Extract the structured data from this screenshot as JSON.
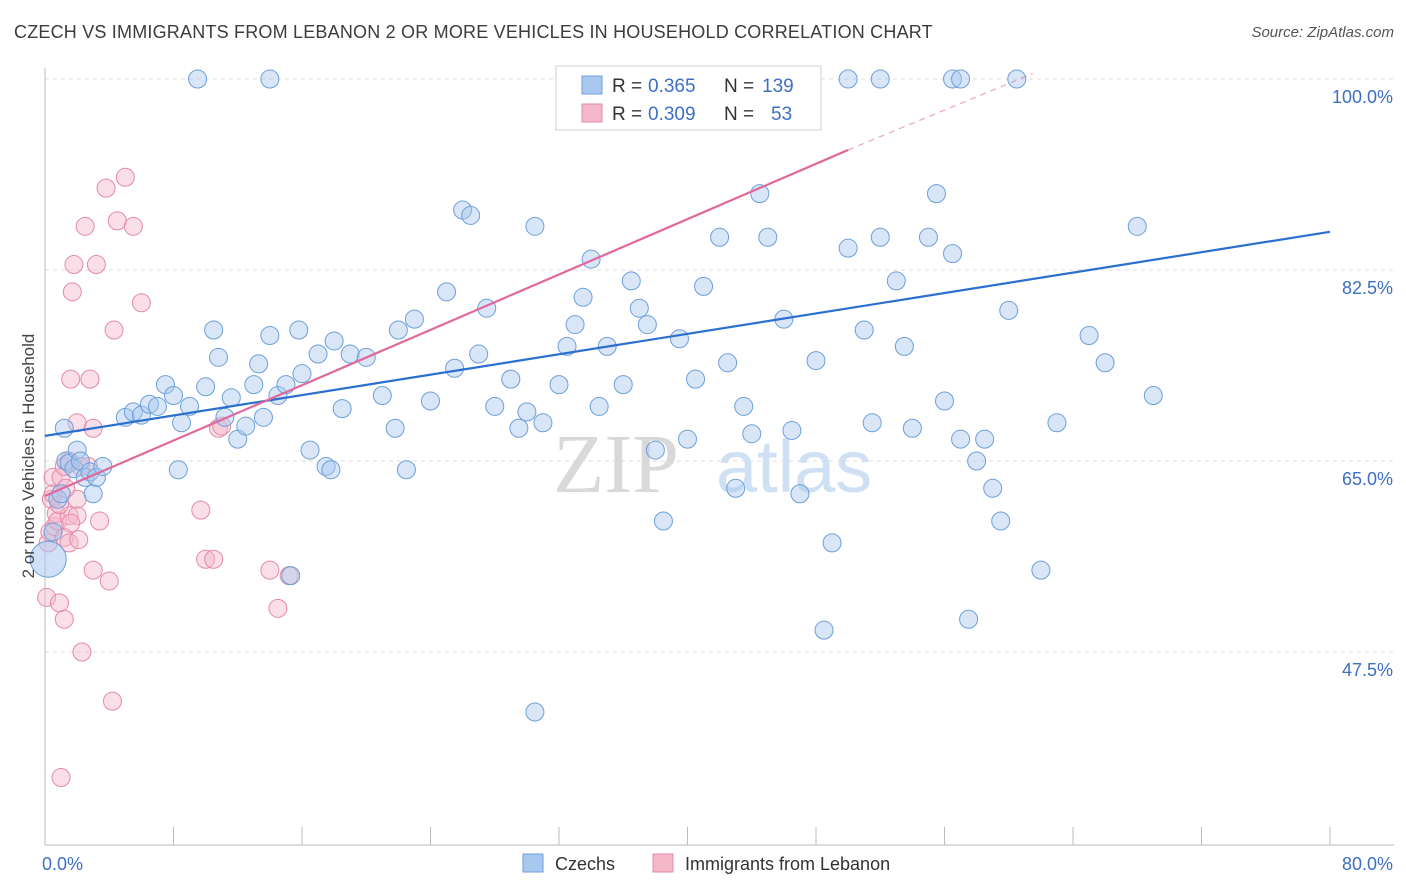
{
  "title": "CZECH VS IMMIGRANTS FROM LEBANON 2 OR MORE VEHICLES IN HOUSEHOLD CORRELATION CHART",
  "source": "Source: ZipAtlas.com",
  "watermark": {
    "zip": "ZIP",
    "atlas": "atlas"
  },
  "colors": {
    "blue_fill": "#a9c8f0",
    "blue_stroke": "#6e9fd8",
    "blue_line": "#2b6fcf",
    "pink_fill": "#f5b8cb",
    "pink_stroke": "#e48aa8",
    "pink_line": "#e0689a",
    "tick_text": "#3d6fc4",
    "grid": "#dddddd"
  },
  "legend": {
    "rows": [
      {
        "r_label": "R =",
        "r_value": "0.365",
        "n_label": "N =",
        "n_value": "139"
      },
      {
        "r_label": "R =",
        "r_value": "0.309",
        "n_label": "N =",
        "n_value": "53"
      }
    ]
  },
  "chart_data": {
    "type": "scatter",
    "xlabel": "",
    "ylabel": "2 or more Vehicles in Household",
    "xlim": [
      0,
      80
    ],
    "ylim": [
      30,
      103
    ],
    "x_tick_labels": [
      {
        "v": 0,
        "label": "0.0%"
      },
      {
        "v": 80,
        "label": "80.0%"
      }
    ],
    "x_minor_ticks": [
      0,
      8,
      16,
      24,
      32,
      40,
      48,
      56,
      64,
      72,
      80
    ],
    "y_ticks": [
      {
        "v": 47.5,
        "label": "47.5%"
      },
      {
        "v": 65.0,
        "label": "65.0%"
      },
      {
        "v": 82.5,
        "label": "82.5%"
      },
      {
        "v": 100.0,
        "label": "100.0%"
      }
    ],
    "series": [
      {
        "name": "Czechs",
        "color": "blue",
        "trend": {
          "x0": 0,
          "y0": 67.3,
          "x1": 80,
          "y1": 86.0
        },
        "points": [
          [
            0.2,
            56.0
          ],
          [
            0.5,
            58.5
          ],
          [
            0.8,
            61.5
          ],
          [
            1.0,
            62.0
          ],
          [
            1.2,
            68.0
          ],
          [
            1.3,
            65.0
          ],
          [
            1.5,
            64.8
          ],
          [
            1.8,
            64.3
          ],
          [
            2.0,
            66.0
          ],
          [
            2.2,
            65.0
          ],
          [
            2.5,
            63.5
          ],
          [
            2.8,
            64.0
          ],
          [
            3.0,
            62.0
          ],
          [
            3.2,
            63.5
          ],
          [
            3.6,
            64.5
          ],
          [
            5.0,
            69.0
          ],
          [
            5.5,
            69.5
          ],
          [
            6.0,
            69.2
          ],
          [
            6.5,
            70.2
          ],
          [
            7.0,
            70.0
          ],
          [
            7.5,
            72.0
          ],
          [
            8.0,
            71.0
          ],
          [
            8.3,
            64.2
          ],
          [
            8.5,
            68.5
          ],
          [
            9.0,
            70.0
          ],
          [
            10.0,
            71.8
          ],
          [
            10.5,
            77.0
          ],
          [
            10.8,
            74.5
          ],
          [
            11.2,
            69.0
          ],
          [
            11.6,
            70.8
          ],
          [
            12.0,
            67.0
          ],
          [
            12.5,
            68.2
          ],
          [
            13.0,
            72.0
          ],
          [
            13.3,
            73.9
          ],
          [
            13.6,
            69.0
          ],
          [
            14.0,
            76.5
          ],
          [
            14.5,
            71.0
          ],
          [
            15.0,
            72.0
          ],
          [
            15.3,
            54.5
          ],
          [
            15.8,
            77.0
          ],
          [
            16.0,
            73.0
          ],
          [
            16.5,
            66.0
          ],
          [
            17.0,
            74.8
          ],
          [
            17.5,
            64.5
          ],
          [
            17.8,
            64.2
          ],
          [
            18.0,
            76.0
          ],
          [
            18.5,
            69.8
          ],
          [
            19.0,
            74.8
          ],
          [
            20.0,
            74.5
          ],
          [
            21.0,
            71.0
          ],
          [
            21.8,
            68.0
          ],
          [
            22.0,
            77.0
          ],
          [
            22.5,
            64.2
          ],
          [
            23.0,
            78.0
          ],
          [
            24.0,
            70.5
          ],
          [
            25.0,
            80.5
          ],
          [
            25.5,
            73.5
          ],
          [
            26.0,
            88.0
          ],
          [
            26.5,
            87.5
          ],
          [
            27.0,
            74.8
          ],
          [
            27.5,
            79.0
          ],
          [
            28.0,
            70.0
          ],
          [
            29.0,
            72.5
          ],
          [
            29.5,
            68.0
          ],
          [
            30.0,
            69.5
          ],
          [
            30.5,
            86.5
          ],
          [
            31.0,
            68.5
          ],
          [
            32.0,
            72.0
          ],
          [
            32.5,
            75.5
          ],
          [
            33.0,
            77.5
          ],
          [
            33.5,
            80.0
          ],
          [
            34.0,
            83.5
          ],
          [
            34.5,
            70.0
          ],
          [
            35.0,
            75.5
          ],
          [
            36.0,
            72.0
          ],
          [
            36.5,
            81.5
          ],
          [
            37.0,
            79.0
          ],
          [
            37.5,
            77.5
          ],
          [
            38.0,
            66.0
          ],
          [
            38.5,
            59.5
          ],
          [
            39.5,
            76.2
          ],
          [
            40.0,
            67.0
          ],
          [
            40.5,
            72.5
          ],
          [
            41.0,
            81.0
          ],
          [
            42.0,
            85.5
          ],
          [
            42.5,
            74.0
          ],
          [
            43.0,
            62.5
          ],
          [
            43.5,
            70.0
          ],
          [
            44.0,
            67.5
          ],
          [
            44.5,
            89.5
          ],
          [
            45.0,
            85.5
          ],
          [
            46.0,
            78.0
          ],
          [
            46.5,
            67.8
          ],
          [
            47.0,
            62.0
          ],
          [
            48.0,
            74.2
          ],
          [
            48.5,
            49.5
          ],
          [
            49.0,
            57.5
          ],
          [
            50.0,
            84.5
          ],
          [
            51.0,
            77.0
          ],
          [
            51.5,
            68.5
          ],
          [
            52.0,
            85.5
          ],
          [
            53.0,
            81.5
          ],
          [
            53.5,
            75.5
          ],
          [
            54.0,
            68.0
          ],
          [
            55.0,
            85.5
          ],
          [
            55.5,
            89.5
          ],
          [
            56.0,
            70.5
          ],
          [
            56.5,
            84.0
          ],
          [
            57.0,
            67.0
          ],
          [
            57.5,
            50.5
          ],
          [
            58.0,
            65.0
          ],
          [
            58.5,
            67.0
          ],
          [
            59.0,
            62.5
          ],
          [
            59.5,
            59.5
          ],
          [
            60.0,
            78.8
          ],
          [
            62.0,
            55.0
          ],
          [
            63.0,
            68.5
          ],
          [
            65.0,
            76.5
          ],
          [
            66.0,
            74.0
          ],
          [
            68.0,
            86.5
          ],
          [
            69.0,
            71.0
          ],
          [
            30.5,
            42.0
          ],
          [
            9.5,
            100.0
          ],
          [
            14.0,
            100.0
          ],
          [
            34.5,
            100.0
          ],
          [
            35.0,
            100.0
          ],
          [
            37.0,
            100.0
          ],
          [
            50.0,
            100.0
          ],
          [
            52.0,
            100.0
          ],
          [
            56.5,
            100.0
          ],
          [
            57.0,
            100.0
          ],
          [
            60.5,
            100.0
          ]
        ]
      },
      {
        "name": "Immigrants from Lebanon",
        "color": "pink",
        "trend": {
          "x0": 0,
          "y0": 61.8,
          "x1": 50,
          "y1": 93.5,
          "dash_x1": 61.5,
          "dash_y1": 100.5
        },
        "points": [
          [
            0.1,
            52.5
          ],
          [
            0.2,
            57.5
          ],
          [
            0.3,
            58.5
          ],
          [
            0.4,
            61.5
          ],
          [
            0.5,
            62.0
          ],
          [
            0.5,
            63.5
          ],
          [
            0.6,
            59.0
          ],
          [
            0.7,
            60.2
          ],
          [
            0.8,
            59.5
          ],
          [
            0.9,
            52.0
          ],
          [
            1.0,
            63.5
          ],
          [
            1.0,
            36.0
          ],
          [
            1.2,
            64.5
          ],
          [
            1.2,
            58.0
          ],
          [
            1.2,
            50.5
          ],
          [
            1.5,
            60.0
          ],
          [
            1.5,
            57.5
          ],
          [
            1.5,
            65.0
          ],
          [
            1.6,
            72.5
          ],
          [
            1.7,
            80.5
          ],
          [
            1.8,
            83.0
          ],
          [
            2.0,
            68.5
          ],
          [
            2.0,
            60.0
          ],
          [
            2.0,
            61.5
          ],
          [
            2.2,
            64.5
          ],
          [
            2.3,
            47.5
          ],
          [
            2.5,
            86.5
          ],
          [
            2.7,
            64.5
          ],
          [
            2.8,
            72.5
          ],
          [
            3.0,
            68.0
          ],
          [
            3.0,
            55.0
          ],
          [
            3.2,
            83.0
          ],
          [
            3.4,
            59.5
          ],
          [
            3.8,
            90.0
          ],
          [
            4.0,
            54.0
          ],
          [
            4.2,
            43.0
          ],
          [
            4.3,
            77.0
          ],
          [
            4.5,
            87.0
          ],
          [
            5.0,
            91.0
          ],
          [
            5.5,
            86.5
          ],
          [
            6.0,
            79.5
          ],
          [
            9.7,
            60.5
          ],
          [
            10.0,
            56.0
          ],
          [
            10.5,
            56.0
          ],
          [
            10.8,
            68.0
          ],
          [
            11.0,
            68.2
          ],
          [
            14.0,
            55.0
          ],
          [
            14.5,
            51.5
          ],
          [
            15.2,
            54.5
          ],
          [
            1.6,
            59.3
          ],
          [
            2.1,
            57.8
          ],
          [
            0.9,
            61.0
          ],
          [
            1.3,
            62.5
          ]
        ]
      }
    ]
  },
  "legend_bottom": [
    {
      "label": "Czechs",
      "color": "blue"
    },
    {
      "label": "Immigrants from Lebanon",
      "color": "pink"
    }
  ]
}
